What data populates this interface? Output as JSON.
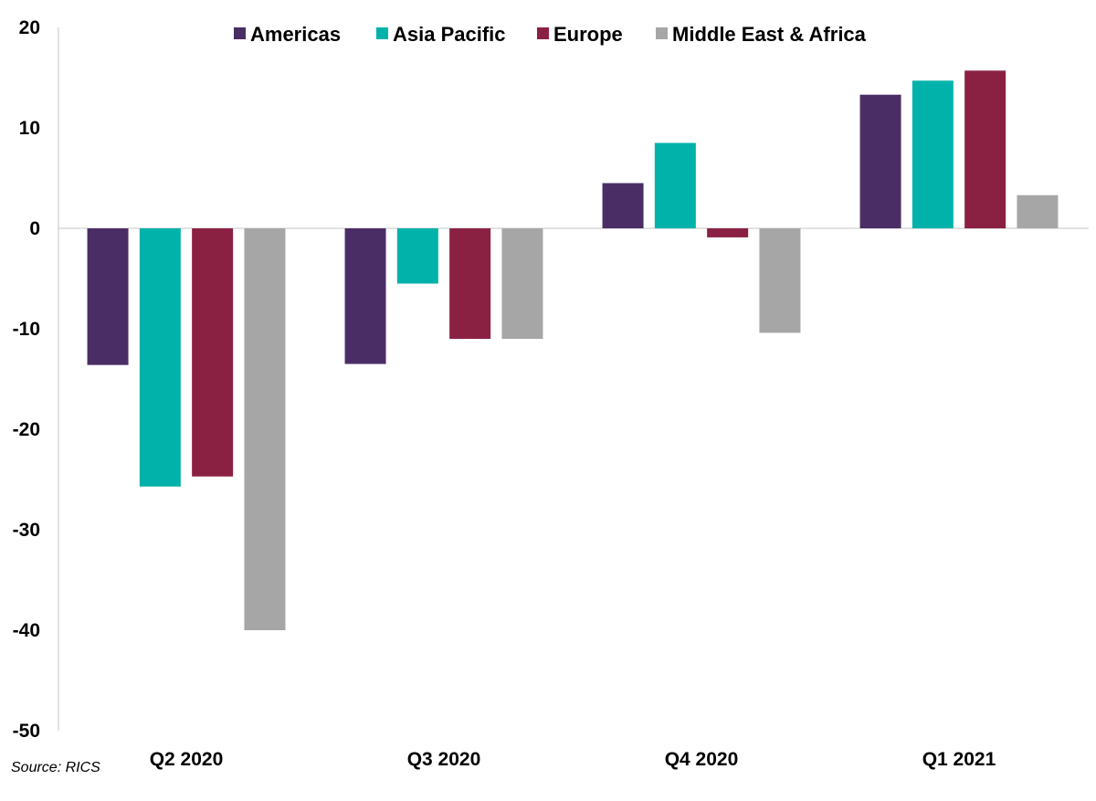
{
  "chart_data": {
    "type": "bar",
    "categories": [
      "Q2 2020",
      "Q3 2020",
      "Q4 2020",
      "Q1 2021"
    ],
    "series": [
      {
        "name": "Americas",
        "color": "#4b2d66",
        "values": [
          -13.6,
          -13.5,
          4.5,
          13.3
        ]
      },
      {
        "name": "Asia Pacific",
        "color": "#00b2a9",
        "values": [
          -25.7,
          -5.5,
          8.5,
          14.7
        ]
      },
      {
        "name": "Europe",
        "color": "#8b2142",
        "values": [
          -24.7,
          -11.0,
          -0.9,
          15.7
        ]
      },
      {
        "name": "Middle East & Africa",
        "color": "#a6a6a6",
        "values": [
          -40.0,
          -11.0,
          -10.4,
          3.3
        ]
      }
    ],
    "ylim": [
      -50,
      20
    ],
    "yticks": [
      20,
      10,
      0,
      -10,
      -20,
      -30,
      -40,
      -50
    ],
    "title": "",
    "xlabel": "",
    "ylabel": "",
    "legend_position": "top",
    "grid": false
  },
  "source": "Source: RICS"
}
